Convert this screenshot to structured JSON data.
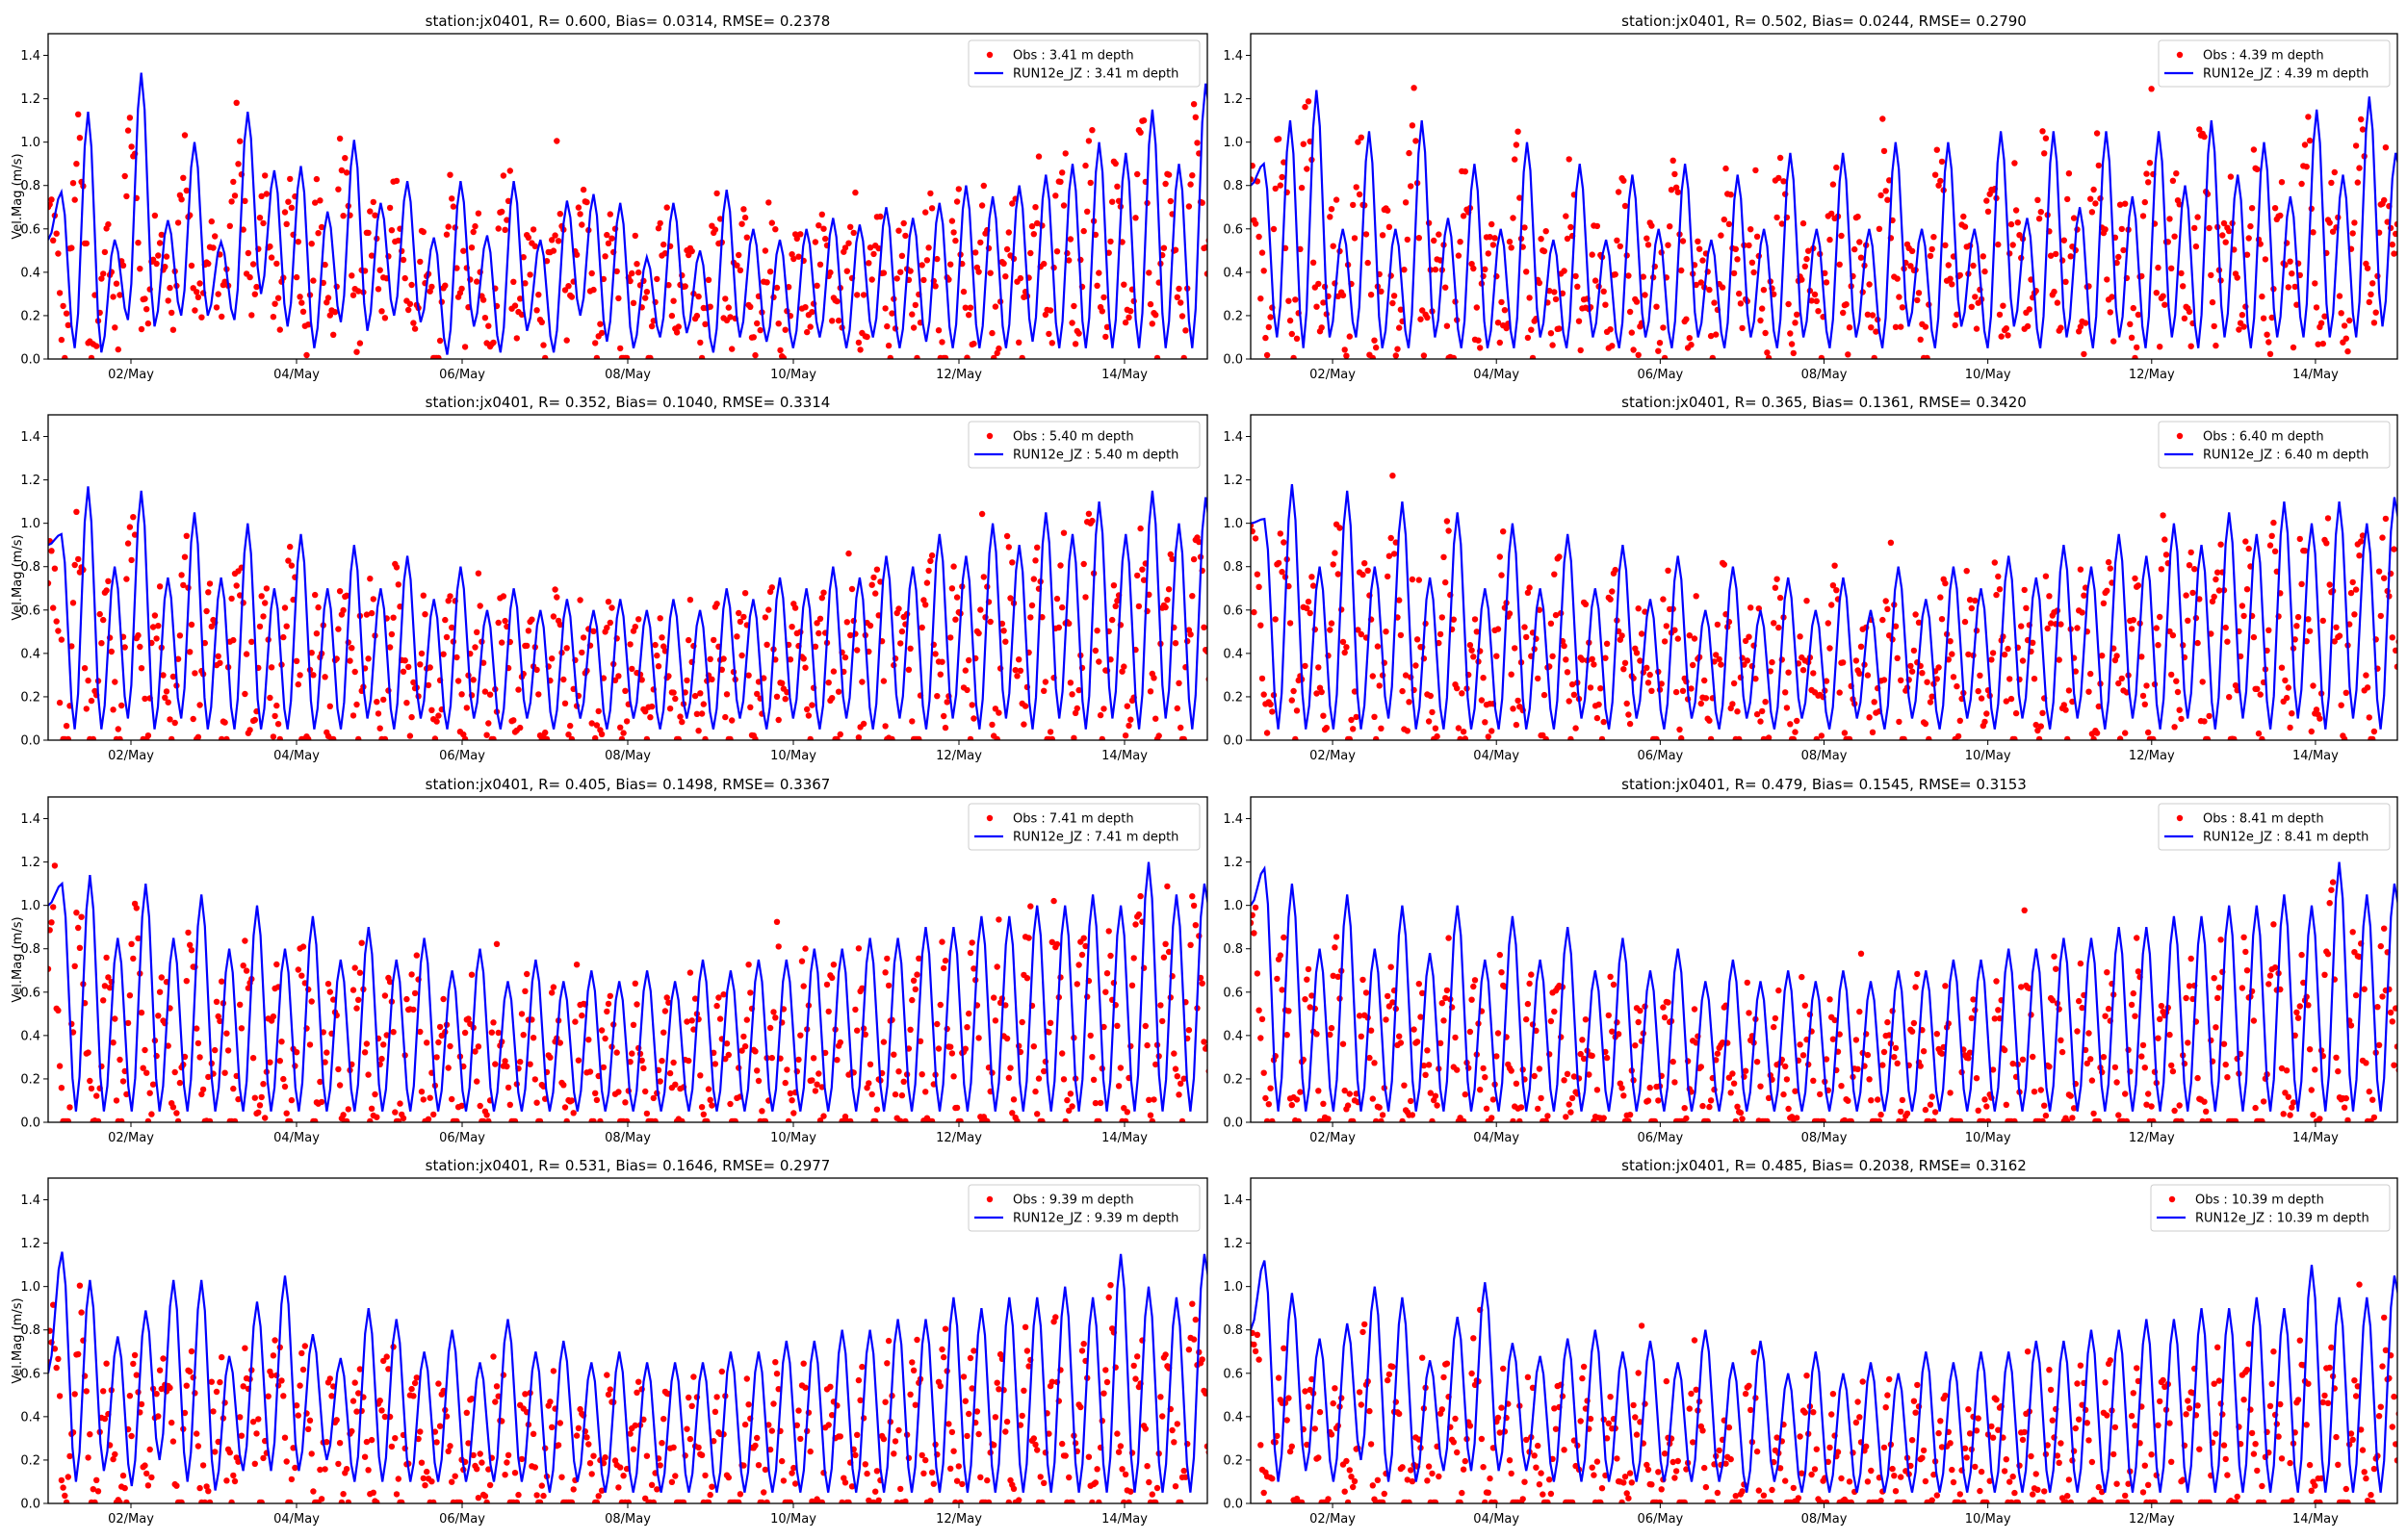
{
  "figure": {
    "ylabel": "Vel.Mag (m/s)",
    "colors": {
      "obs": "#ff0000",
      "model": "#0000ff",
      "axis": "#000000",
      "legend_border": "#cccccc"
    }
  },
  "chart_data": [
    {
      "type": "scatter+line",
      "title": "station:jx0401, R= 0.600, Bias= 0.0314, RMSE= 0.2378",
      "xlabel": "",
      "ylabel": "Vel.Mag (m/s)",
      "xlim_days": [
        0,
        14
      ],
      "ylim": [
        0,
        1.5
      ],
      "xticks": [
        "02/May",
        "04/May",
        "06/May",
        "08/May",
        "10/May",
        "12/May",
        "14/May"
      ],
      "xtick_days": [
        1,
        3,
        5,
        7,
        9,
        11,
        13
      ],
      "yticks": [
        "0.0",
        "0.2",
        "0.4",
        "0.6",
        "0.8",
        "1.0",
        "1.2",
        "1.4"
      ],
      "legend": [
        "Obs : 3.41 m depth",
        "RUN12e_JZ : 3.41 m depth"
      ],
      "legend_loc": "upper right",
      "model_extrema": [
        0.55,
        0.77,
        0.05,
        1.14,
        0.03,
        0.55,
        0.18,
        1.32,
        0.15,
        0.64,
        0.2,
        1.0,
        0.2,
        0.54,
        0.18,
        1.14,
        0.3,
        0.87,
        0.15,
        0.89,
        0.05,
        0.68,
        0.17,
        1.01,
        0.13,
        0.72,
        0.2,
        0.82,
        0.17,
        0.56,
        0.02,
        0.82,
        0.15,
        0.57,
        0.03,
        0.82,
        0.13,
        0.55,
        0.03,
        0.73,
        0.2,
        0.76,
        0.08,
        0.72,
        0.05,
        0.47,
        0.1,
        0.72,
        0.12,
        0.5,
        0.03,
        0.78,
        0.1,
        0.6,
        0.08,
        0.55,
        0.05,
        0.6,
        0.1,
        0.65,
        0.05,
        0.62,
        0.1,
        0.7,
        0.05,
        0.65,
        0.08,
        0.72,
        0.05,
        0.8,
        0.05,
        0.75,
        0.05,
        0.8,
        0.08,
        0.85,
        0.05,
        0.9,
        0.05,
        1.0,
        0.05,
        0.95,
        0.05,
        1.15,
        0.05,
        0.9,
        0.05,
        1.27,
        0.5,
        0.9
      ],
      "obs_mean": 0.5,
      "obs_amp": 0.55
    },
    {
      "type": "scatter+line",
      "title": "station:jx0401, R= 0.502, Bias= 0.0244, RMSE= 0.2790",
      "xlabel": "",
      "ylabel": "",
      "xlim_days": [
        0,
        14
      ],
      "ylim": [
        0,
        1.5
      ],
      "xticks": [
        "02/May",
        "04/May",
        "06/May",
        "08/May",
        "10/May",
        "12/May",
        "14/May"
      ],
      "xtick_days": [
        1,
        3,
        5,
        7,
        9,
        11,
        13
      ],
      "yticks": [
        "0.0",
        "0.2",
        "0.4",
        "0.6",
        "0.8",
        "1.0",
        "1.2",
        "1.4"
      ],
      "legend": [
        "Obs : 4.39 m depth",
        "RUN12e_JZ : 4.39 m depth"
      ],
      "legend_loc": "upper right",
      "model_extrema": [
        0.8,
        0.9,
        0.1,
        1.1,
        0.05,
        1.24,
        0.1,
        0.6,
        0.1,
        1.05,
        0.05,
        0.6,
        0.05,
        1.1,
        0.1,
        0.65,
        0.05,
        0.9,
        0.05,
        0.6,
        0.05,
        1.0,
        0.1,
        0.55,
        0.05,
        0.9,
        0.1,
        0.55,
        0.05,
        0.85,
        0.1,
        0.6,
        0.05,
        0.9,
        0.1,
        0.55,
        0.05,
        0.85,
        0.1,
        0.6,
        0.05,
        0.95,
        0.1,
        0.6,
        0.05,
        0.95,
        0.1,
        0.6,
        0.05,
        1.0,
        0.15,
        0.6,
        0.05,
        1.0,
        0.15,
        0.6,
        0.05,
        1.05,
        0.15,
        0.65,
        0.05,
        1.05,
        0.1,
        0.7,
        0.05,
        1.05,
        0.1,
        0.75,
        0.05,
        1.05,
        0.1,
        0.8,
        0.05,
        1.1,
        0.1,
        0.85,
        0.05,
        1.0,
        0.1,
        0.75,
        0.1,
        1.15,
        0.1,
        0.85,
        0.1,
        1.21,
        0.15,
        0.95,
        0.5,
        1.0
      ],
      "obs_mean": 0.5,
      "obs_amp": 0.6
    },
    {
      "type": "scatter+line",
      "title": "station:jx0401, R= 0.352, Bias= 0.1040, RMSE= 0.3314",
      "xlabel": "",
      "ylabel": "Vel.Mag (m/s)",
      "xlim_days": [
        0,
        14
      ],
      "ylim": [
        0,
        1.5
      ],
      "xticks": [
        "02/May",
        "04/May",
        "06/May",
        "08/May",
        "10/May",
        "12/May",
        "14/May"
      ],
      "xtick_days": [
        1,
        3,
        5,
        7,
        9,
        11,
        13
      ],
      "yticks": [
        "0.0",
        "0.2",
        "0.4",
        "0.6",
        "0.8",
        "1.0",
        "1.2",
        "1.4"
      ],
      "legend": [
        "Obs : 5.40 m depth",
        "RUN12e_JZ : 5.40 m depth"
      ],
      "legend_loc": "upper right",
      "model_extrema": [
        0.9,
        0.95,
        0.05,
        1.17,
        0.05,
        0.8,
        0.1,
        1.15,
        0.05,
        0.75,
        0.1,
        1.05,
        0.05,
        0.75,
        0.05,
        1.0,
        0.05,
        0.7,
        0.05,
        0.95,
        0.05,
        0.7,
        0.05,
        0.9,
        0.1,
        0.7,
        0.05,
        0.85,
        0.1,
        0.65,
        0.05,
        0.8,
        0.1,
        0.6,
        0.05,
        0.7,
        0.1,
        0.6,
        0.05,
        0.65,
        0.1,
        0.6,
        0.05,
        0.65,
        0.1,
        0.6,
        0.05,
        0.65,
        0.1,
        0.6,
        0.05,
        0.7,
        0.1,
        0.65,
        0.05,
        0.75,
        0.1,
        0.7,
        0.05,
        0.8,
        0.1,
        0.75,
        0.05,
        0.85,
        0.1,
        0.8,
        0.05,
        0.95,
        0.1,
        0.85,
        0.05,
        1.0,
        0.1,
        0.9,
        0.05,
        1.05,
        0.1,
        0.95,
        0.05,
        1.1,
        0.1,
        0.95,
        0.05,
        1.15,
        0.1,
        1.0,
        0.05,
        1.12,
        0.4,
        1.1
      ],
      "obs_mean": 0.45,
      "obs_amp": 0.6
    },
    {
      "type": "scatter+line",
      "title": "station:jx0401, R= 0.365, Bias= 0.1361, RMSE= 0.3420",
      "xlabel": "",
      "ylabel": "",
      "xlim_days": [
        0,
        14
      ],
      "ylim": [
        0,
        1.5
      ],
      "xticks": [
        "02/May",
        "04/May",
        "06/May",
        "08/May",
        "10/May",
        "12/May",
        "14/May"
      ],
      "xtick_days": [
        1,
        3,
        5,
        7,
        9,
        11,
        13
      ],
      "yticks": [
        "0.0",
        "0.2",
        "0.4",
        "0.6",
        "0.8",
        "1.0",
        "1.2",
        "1.4"
      ],
      "legend": [
        "Obs : 6.40 m depth",
        "RUN12e_JZ : 6.40 m depth"
      ],
      "legend_loc": "upper right",
      "model_extrema": [
        1.0,
        1.02,
        0.05,
        1.18,
        0.05,
        0.8,
        0.05,
        1.15,
        0.05,
        0.8,
        0.1,
        1.1,
        0.05,
        0.75,
        0.05,
        1.05,
        0.05,
        0.7,
        0.05,
        1.0,
        0.05,
        0.7,
        0.05,
        0.95,
        0.1,
        0.7,
        0.05,
        0.9,
        0.1,
        0.65,
        0.05,
        0.85,
        0.1,
        0.6,
        0.05,
        0.8,
        0.1,
        0.6,
        0.05,
        0.75,
        0.1,
        0.6,
        0.05,
        0.75,
        0.1,
        0.6,
        0.05,
        0.8,
        0.1,
        0.65,
        0.05,
        0.8,
        0.1,
        0.7,
        0.05,
        0.85,
        0.1,
        0.75,
        0.05,
        0.9,
        0.1,
        0.8,
        0.05,
        0.95,
        0.1,
        0.85,
        0.05,
        1.0,
        0.1,
        0.9,
        0.05,
        1.05,
        0.1,
        0.95,
        0.05,
        1.1,
        0.1,
        1.0,
        0.05,
        1.1,
        0.1,
        1.0,
        0.05,
        1.12,
        0.5,
        1.1
      ],
      "obs_mean": 0.45,
      "obs_amp": 0.6
    },
    {
      "type": "scatter+line",
      "title": "station:jx0401, R= 0.405, Bias= 0.1498, RMSE= 0.3367",
      "xlabel": "",
      "ylabel": "Vel.Mag (m/s)",
      "xlim_days": [
        0,
        14
      ],
      "ylim": [
        0,
        1.5
      ],
      "xticks": [
        "02/May",
        "04/May",
        "06/May",
        "08/May",
        "10/May",
        "12/May",
        "14/May"
      ],
      "xtick_days": [
        1,
        3,
        5,
        7,
        9,
        11,
        13
      ],
      "yticks": [
        "0.0",
        "0.2",
        "0.4",
        "0.6",
        "0.8",
        "1.0",
        "1.2",
        "1.4"
      ],
      "legend": [
        "Obs : 7.41 m depth",
        "RUN12e_JZ : 7.41 m depth"
      ],
      "legend_loc": "upper right",
      "model_extrema": [
        1.0,
        1.1,
        0.05,
        1.14,
        0.05,
        0.85,
        0.05,
        1.1,
        0.05,
        0.85,
        0.05,
        1.05,
        0.05,
        0.8,
        0.05,
        1.0,
        0.05,
        0.8,
        0.05,
        0.95,
        0.05,
        0.75,
        0.05,
        0.9,
        0.05,
        0.75,
        0.05,
        0.85,
        0.05,
        0.7,
        0.05,
        0.8,
        0.05,
        0.65,
        0.05,
        0.75,
        0.05,
        0.65,
        0.05,
        0.7,
        0.05,
        0.65,
        0.05,
        0.7,
        0.05,
        0.65,
        0.05,
        0.75,
        0.05,
        0.7,
        0.05,
        0.75,
        0.05,
        0.75,
        0.05,
        0.8,
        0.05,
        0.8,
        0.05,
        0.85,
        0.05,
        0.85,
        0.05,
        0.9,
        0.05,
        0.9,
        0.05,
        0.95,
        0.05,
        0.95,
        0.05,
        1.0,
        0.05,
        1.0,
        0.05,
        1.05,
        0.05,
        1.0,
        0.05,
        1.2,
        0.05,
        1.05,
        0.05,
        1.1,
        0.5,
        1.12
      ],
      "obs_mean": 0.4,
      "obs_amp": 0.6
    },
    {
      "type": "scatter+line",
      "title": "station:jx0401, R= 0.479, Bias= 0.1545, RMSE= 0.3153",
      "xlabel": "",
      "ylabel": "",
      "xlim_days": [
        0,
        14
      ],
      "ylim": [
        0,
        1.5
      ],
      "xticks": [
        "02/May",
        "04/May",
        "06/May",
        "08/May",
        "10/May",
        "12/May",
        "14/May"
      ],
      "xtick_days": [
        1,
        3,
        5,
        7,
        9,
        11,
        13
      ],
      "yticks": [
        "0.0",
        "0.2",
        "0.4",
        "0.6",
        "0.8",
        "1.0",
        "1.2",
        "1.4"
      ],
      "legend": [
        "Obs : 8.41 m depth",
        "RUN12e_JZ : 8.41 m depth"
      ],
      "legend_loc": "upper right",
      "model_extrema": [
        1.0,
        1.17,
        0.05,
        1.1,
        0.05,
        0.8,
        0.05,
        1.05,
        0.05,
        0.8,
        0.05,
        1.0,
        0.05,
        0.78,
        0.05,
        1.0,
        0.05,
        0.75,
        0.05,
        0.95,
        0.05,
        0.75,
        0.05,
        0.9,
        0.05,
        0.7,
        0.05,
        0.85,
        0.05,
        0.7,
        0.05,
        0.8,
        0.05,
        0.65,
        0.05,
        0.75,
        0.05,
        0.65,
        0.05,
        0.7,
        0.05,
        0.65,
        0.05,
        0.7,
        0.05,
        0.65,
        0.05,
        0.7,
        0.05,
        0.7,
        0.05,
        0.75,
        0.05,
        0.75,
        0.05,
        0.8,
        0.05,
        0.8,
        0.05,
        0.85,
        0.05,
        0.85,
        0.05,
        0.9,
        0.05,
        0.9,
        0.05,
        0.95,
        0.05,
        0.95,
        0.05,
        1.0,
        0.05,
        1.0,
        0.05,
        1.05,
        0.05,
        1.0,
        0.05,
        1.2,
        0.05,
        1.05,
        0.05,
        1.1,
        0.5,
        1.27
      ],
      "obs_mean": 0.35,
      "obs_amp": 0.6
    },
    {
      "type": "scatter+line",
      "title": "station:jx0401, R= 0.531, Bias= 0.1646, RMSE= 0.2977",
      "xlabel": "",
      "ylabel": "Vel.Mag (m/s)",
      "xlim_days": [
        0,
        14
      ],
      "ylim": [
        0,
        1.5
      ],
      "xticks": [
        "02/May",
        "04/May",
        "06/May",
        "08/May",
        "10/May",
        "12/May",
        "14/May"
      ],
      "xtick_days": [
        1,
        3,
        5,
        7,
        9,
        11,
        13
      ],
      "yticks": [
        "0.0",
        "0.2",
        "0.4",
        "0.6",
        "0.8",
        "1.0",
        "1.2",
        "1.4"
      ],
      "legend": [
        "Obs : 9.39 m depth",
        "RUN12e_JZ : 9.39 m depth"
      ],
      "legend_loc": "upper right",
      "model_extrema": [
        0.6,
        1.16,
        0.1,
        1.03,
        0.15,
        0.77,
        0.08,
        0.89,
        0.2,
        1.03,
        0.1,
        1.03,
        0.06,
        0.68,
        0.15,
        0.93,
        0.15,
        1.05,
        0.15,
        0.78,
        0.2,
        0.67,
        0.1,
        0.9,
        0.1,
        0.85,
        0.1,
        0.7,
        0.1,
        0.8,
        0.1,
        0.65,
        0.1,
        0.85,
        0.1,
        0.7,
        0.05,
        0.75,
        0.1,
        0.65,
        0.05,
        0.7,
        0.05,
        0.65,
        0.05,
        0.65,
        0.05,
        0.65,
        0.05,
        0.7,
        0.05,
        0.7,
        0.05,
        0.75,
        0.05,
        0.75,
        0.05,
        0.8,
        0.05,
        0.8,
        0.05,
        0.85,
        0.05,
        0.85,
        0.05,
        0.95,
        0.05,
        0.9,
        0.05,
        0.95,
        0.05,
        0.95,
        0.05,
        1.0,
        0.05,
        0.95,
        0.05,
        1.15,
        0.05,
        1.0,
        0.05,
        0.95,
        0.05,
        1.15,
        0.5,
        1.12
      ],
      "obs_mean": 0.35,
      "obs_amp": 0.6
    },
    {
      "type": "scatter+line",
      "title": "station:jx0401, R= 0.485, Bias= 0.2038, RMSE= 0.3162",
      "xlabel": "",
      "ylabel": "",
      "xlim_days": [
        0,
        14
      ],
      "ylim": [
        0,
        1.5
      ],
      "xticks": [
        "02/May",
        "04/May",
        "06/May",
        "08/May",
        "10/May",
        "12/May",
        "14/May"
      ],
      "xtick_days": [
        1,
        3,
        5,
        7,
        9,
        11,
        13
      ],
      "yticks": [
        "0.0",
        "0.2",
        "0.4",
        "0.6",
        "0.8",
        "1.0",
        "1.2",
        "1.4"
      ],
      "legend": [
        "Obs : 10.39 m depth",
        "RUN12e_JZ : 10.39 m depth"
      ],
      "legend_loc": "upper right",
      "model_extrema": [
        0.8,
        1.12,
        0.1,
        0.97,
        0.15,
        0.76,
        0.1,
        0.83,
        0.2,
        1.0,
        0.1,
        0.95,
        0.1,
        0.66,
        0.15,
        0.86,
        0.15,
        1.02,
        0.15,
        0.74,
        0.15,
        0.68,
        0.1,
        0.76,
        0.1,
        0.8,
        0.1,
        0.7,
        0.1,
        0.75,
        0.1,
        0.65,
        0.1,
        0.8,
        0.1,
        0.65,
        0.05,
        0.75,
        0.1,
        0.6,
        0.05,
        0.7,
        0.05,
        0.6,
        0.05,
        0.65,
        0.05,
        0.6,
        0.05,
        0.7,
        0.05,
        0.65,
        0.05,
        0.7,
        0.05,
        0.7,
        0.05,
        0.75,
        0.05,
        0.75,
        0.05,
        0.8,
        0.05,
        0.8,
        0.05,
        0.85,
        0.05,
        0.85,
        0.05,
        0.9,
        0.05,
        0.9,
        0.05,
        0.95,
        0.05,
        0.9,
        0.05,
        1.1,
        0.05,
        0.95,
        0.05,
        0.95,
        0.05,
        1.05,
        0.5,
        1.25
      ],
      "obs_mean": 0.3,
      "obs_amp": 0.6
    }
  ]
}
